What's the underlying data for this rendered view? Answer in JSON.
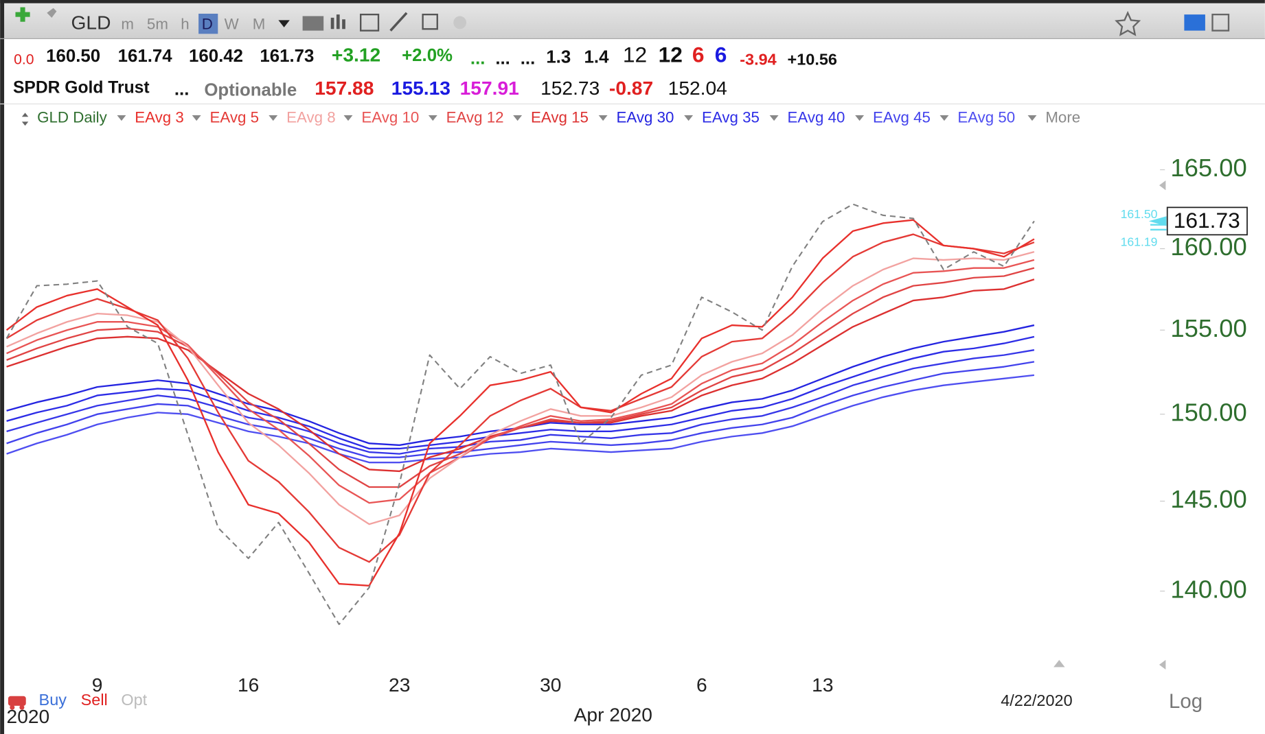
{
  "toolbar": {
    "symbol": "GLD",
    "intervals": [
      "m",
      "5m",
      "h",
      "D",
      "W",
      "M"
    ]
  },
  "quote_row": [
    "0.0",
    "160.50",
    "161.74",
    "160.42",
    "161.73",
    "+3.12",
    "+2.0%",
    "...",
    "...",
    "...",
    "1.3",
    "1.4",
    "12",
    "12",
    "6",
    "6",
    "-3.94",
    "+10.56"
  ],
  "info_row": [
    "SPDR Gold Trust",
    "...",
    "Optionable",
    "157.88",
    "155.13",
    "157.91",
    "152.73",
    "-0.87",
    "152.04"
  ],
  "legend_more": "More",
  "chart_data": {
    "type": "line",
    "categories": [
      null,
      null,
      null,
      "9",
      null,
      null,
      null,
      null,
      "16",
      null,
      null,
      null,
      null,
      "23",
      null,
      null,
      null,
      null,
      "30",
      null,
      null,
      null,
      null,
      "6",
      null,
      null,
      null,
      "13",
      null,
      null,
      null,
      null,
      null,
      null,
      null
    ],
    "x_annotations": {
      "month": "Apr 2020",
      "year": "2020",
      "cursor_date": "4/22/2020"
    },
    "log_scale": true,
    "scale_label": "Log",
    "grid": false,
    "ylim": [
      135.4,
      166.6
    ],
    "yticks": [
      {
        "value": 140,
        "label": "140.00"
      },
      {
        "value": 145,
        "label": "145.00"
      },
      {
        "value": 150,
        "label": "150.00"
      },
      {
        "value": 155,
        "label": "155.00"
      },
      {
        "value": 160,
        "label": "160.00"
      },
      {
        "value": 165,
        "label": "165.00"
      }
    ],
    "price_label": {
      "value": 161.73,
      "label": "161.73"
    },
    "side_labels": [
      {
        "value": 161.5,
        "label": "161.50"
      },
      {
        "value": 161.19,
        "label": "161.19"
      }
    ],
    "signals": [
      "Buy",
      "Sell",
      "Opt"
    ],
    "series": [
      {
        "name": "GLD Daily",
        "color": "#808080",
        "dashed": true,
        "values": [
          154.5,
          157.7,
          157.8,
          158.0,
          155.2,
          154.2,
          148.8,
          143.5,
          141.8,
          143.8,
          141.0,
          138.2,
          140.2,
          146.0,
          153.5,
          151.5,
          153.4,
          152.4,
          152.9,
          148.3,
          149.8,
          152.3,
          152.9,
          157.0,
          156.1,
          155.0,
          158.9,
          161.7,
          162.8,
          162.1,
          161.9,
          158.7,
          159.8,
          158.9,
          161.73
        ]
      },
      {
        "name": "EAvg 3",
        "color": "#e8302c",
        "values": [
          155.0,
          156.4,
          157.1,
          157.5,
          156.4,
          155.3,
          152.0,
          147.8,
          144.8,
          144.3,
          142.7,
          140.4,
          140.3,
          143.2,
          148.3,
          149.9,
          151.7,
          152.0,
          152.5,
          150.4,
          150.1,
          151.2,
          152.1,
          154.5,
          155.3,
          155.2,
          157.0,
          159.4,
          161.1,
          161.6,
          161.8,
          160.2,
          160.0,
          159.5,
          160.6
        ]
      },
      {
        "name": "EAvg 5",
        "color": "#e43a36",
        "values": [
          154.5,
          155.6,
          156.3,
          156.9,
          156.3,
          155.6,
          153.3,
          150.1,
          147.3,
          146.1,
          144.4,
          142.4,
          141.6,
          143.1,
          146.6,
          148.2,
          149.9,
          150.8,
          151.5,
          150.4,
          150.2,
          150.9,
          151.6,
          153.4,
          154.3,
          154.5,
          156.0,
          157.9,
          159.5,
          160.4,
          160.9,
          160.2,
          160.0,
          159.7,
          160.4
        ]
      },
      {
        "name": "EAvg 8",
        "color": "#f2a2a0",
        "values": [
          154.0,
          154.8,
          155.5,
          156.0,
          155.9,
          155.5,
          154.0,
          151.7,
          149.5,
          148.2,
          146.6,
          144.8,
          143.7,
          144.2,
          146.3,
          147.5,
          148.8,
          149.6,
          150.3,
          149.9,
          149.9,
          150.4,
          151.0,
          152.3,
          153.1,
          153.6,
          154.7,
          156.3,
          157.7,
          158.7,
          159.4,
          159.3,
          159.4,
          159.3,
          159.8
        ]
      },
      {
        "name": "EAvg 10",
        "color": "#e85454",
        "values": [
          153.6,
          154.4,
          155.0,
          155.5,
          155.5,
          155.2,
          154.1,
          152.2,
          150.3,
          149.1,
          147.6,
          145.9,
          144.9,
          145.1,
          146.6,
          147.5,
          148.6,
          149.3,
          149.9,
          149.6,
          149.7,
          150.1,
          150.6,
          151.8,
          152.6,
          153.0,
          154.1,
          155.5,
          156.8,
          157.8,
          158.5,
          158.6,
          158.8,
          158.8,
          159.3
        ]
      },
      {
        "name": "EAvg 12",
        "color": "#e04444",
        "values": [
          153.2,
          153.9,
          154.5,
          155.0,
          155.1,
          154.9,
          154.0,
          152.4,
          150.7,
          149.7,
          148.3,
          146.8,
          145.8,
          145.8,
          147.0,
          147.7,
          148.6,
          149.2,
          149.7,
          149.5,
          149.6,
          150.0,
          150.4,
          151.4,
          152.2,
          152.6,
          153.6,
          154.8,
          156.0,
          157.0,
          157.7,
          157.9,
          158.2,
          158.3,
          158.8
        ]
      },
      {
        "name": "EAvg 15",
        "color": "#dc3030",
        "values": [
          152.8,
          153.4,
          154.0,
          154.5,
          154.6,
          154.5,
          153.8,
          152.5,
          151.2,
          150.3,
          149.1,
          147.7,
          146.8,
          146.7,
          147.5,
          148.0,
          148.7,
          149.2,
          149.6,
          149.5,
          149.5,
          149.9,
          150.2,
          151.1,
          151.7,
          152.1,
          153.0,
          154.1,
          155.2,
          156.0,
          156.8,
          157.0,
          157.4,
          157.5,
          158.1
        ]
      },
      {
        "name": "EAvg 30",
        "color": "#2424e0",
        "values": [
          150.2,
          150.7,
          151.1,
          151.6,
          151.8,
          152.0,
          151.8,
          151.2,
          150.6,
          150.2,
          149.6,
          148.9,
          148.3,
          148.2,
          148.5,
          148.7,
          149.0,
          149.2,
          149.5,
          149.4,
          149.4,
          149.6,
          149.8,
          150.3,
          150.7,
          150.9,
          151.4,
          152.1,
          152.8,
          153.4,
          153.9,
          154.3,
          154.6,
          154.9,
          155.3
        ]
      },
      {
        "name": "EAvg 35",
        "color": "#2c2ce6",
        "values": [
          149.6,
          150.1,
          150.5,
          151.1,
          151.3,
          151.5,
          151.4,
          150.8,
          150.2,
          149.8,
          149.3,
          148.6,
          148.0,
          148.0,
          148.2,
          148.4,
          148.7,
          148.9,
          149.1,
          149.0,
          149.0,
          149.2,
          149.4,
          149.8,
          150.2,
          150.4,
          150.9,
          151.6,
          152.2,
          152.8,
          153.3,
          153.7,
          153.9,
          154.2,
          154.6
        ]
      },
      {
        "name": "EAvg 40",
        "color": "#3636e8",
        "values": [
          149.0,
          149.5,
          150.0,
          150.5,
          150.8,
          151.1,
          150.9,
          150.4,
          149.8,
          149.5,
          149.0,
          148.3,
          147.8,
          147.7,
          148.0,
          148.1,
          148.4,
          148.5,
          148.8,
          148.7,
          148.6,
          148.8,
          148.9,
          149.4,
          149.7,
          149.9,
          150.4,
          151.0,
          151.7,
          152.2,
          152.7,
          153.0,
          153.3,
          153.5,
          153.8
        ]
      },
      {
        "name": "EAvg 45",
        "color": "#4242ec",
        "values": [
          148.3,
          148.9,
          149.4,
          150.0,
          150.3,
          150.6,
          150.5,
          149.9,
          149.4,
          149.1,
          148.6,
          148.0,
          147.5,
          147.5,
          147.7,
          147.8,
          148.0,
          148.2,
          148.4,
          148.3,
          148.2,
          148.3,
          148.5,
          148.9,
          149.2,
          149.4,
          149.8,
          150.5,
          151.1,
          151.6,
          152.0,
          152.4,
          152.6,
          152.8,
          153.1
        ]
      },
      {
        "name": "EAvg 50",
        "color": "#4e4ef0",
        "values": [
          147.7,
          148.3,
          148.8,
          149.4,
          149.8,
          150.1,
          150.0,
          149.5,
          149.0,
          148.7,
          148.3,
          147.7,
          147.2,
          147.2,
          147.4,
          147.5,
          147.7,
          147.8,
          148.0,
          147.9,
          147.8,
          147.9,
          148.0,
          148.4,
          148.7,
          148.9,
          149.3,
          149.9,
          150.5,
          151.0,
          151.4,
          151.7,
          151.9,
          152.1,
          152.3
        ]
      }
    ]
  }
}
